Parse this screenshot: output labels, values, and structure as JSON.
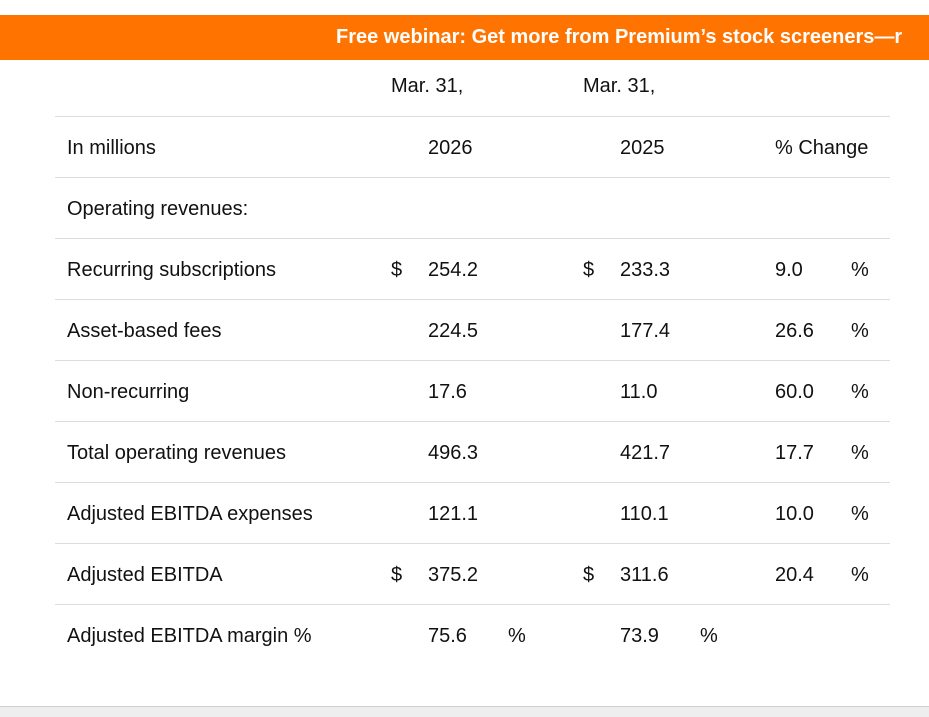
{
  "banner": {
    "text": "Free webinar: Get more from Premium’s stock screeners—r"
  },
  "table": {
    "header_period_1": "Mar. 31,",
    "header_period_2": "Mar. 31,",
    "header_label": "In millions",
    "header_year_1": "2026",
    "header_year_2": "2025",
    "header_change": "% Change",
    "section_label": "Operating revenues:",
    "rows": [
      {
        "label": "Recurring subscriptions",
        "cur1": "$",
        "v1": "254.2",
        "pct1": "",
        "cur2": "$",
        "v2": "233.3",
        "pct2": "",
        "chg": "9.0",
        "chg_pct": "%"
      },
      {
        "label": "Asset-based fees",
        "cur1": "",
        "v1": "224.5",
        "pct1": "",
        "cur2": "",
        "v2": "177.4",
        "pct2": "",
        "chg": "26.6",
        "chg_pct": "%"
      },
      {
        "label": "Non-recurring",
        "cur1": "",
        "v1": "17.6",
        "pct1": "",
        "cur2": "",
        "v2": "11.0",
        "pct2": "",
        "chg": "60.0",
        "chg_pct": "%"
      },
      {
        "label": "Total operating revenues",
        "cur1": "",
        "v1": "496.3",
        "pct1": "",
        "cur2": "",
        "v2": "421.7",
        "pct2": "",
        "chg": "17.7",
        "chg_pct": "%"
      },
      {
        "label": "Adjusted EBITDA expenses",
        "cur1": "",
        "v1": "121.1",
        "pct1": "",
        "cur2": "",
        "v2": "110.1",
        "pct2": "",
        "chg": "10.0",
        "chg_pct": "%"
      },
      {
        "label": "Adjusted EBITDA",
        "cur1": "$",
        "v1": "375.2",
        "pct1": "",
        "cur2": "$",
        "v2": "311.6",
        "pct2": "",
        "chg": "20.4",
        "chg_pct": "%"
      },
      {
        "label": "Adjusted EBITDA margin %",
        "cur1": "",
        "v1": "75.6",
        "pct1": "%",
        "cur2": "",
        "v2": "73.9",
        "pct2": "%",
        "chg": "",
        "chg_pct": ""
      }
    ]
  }
}
